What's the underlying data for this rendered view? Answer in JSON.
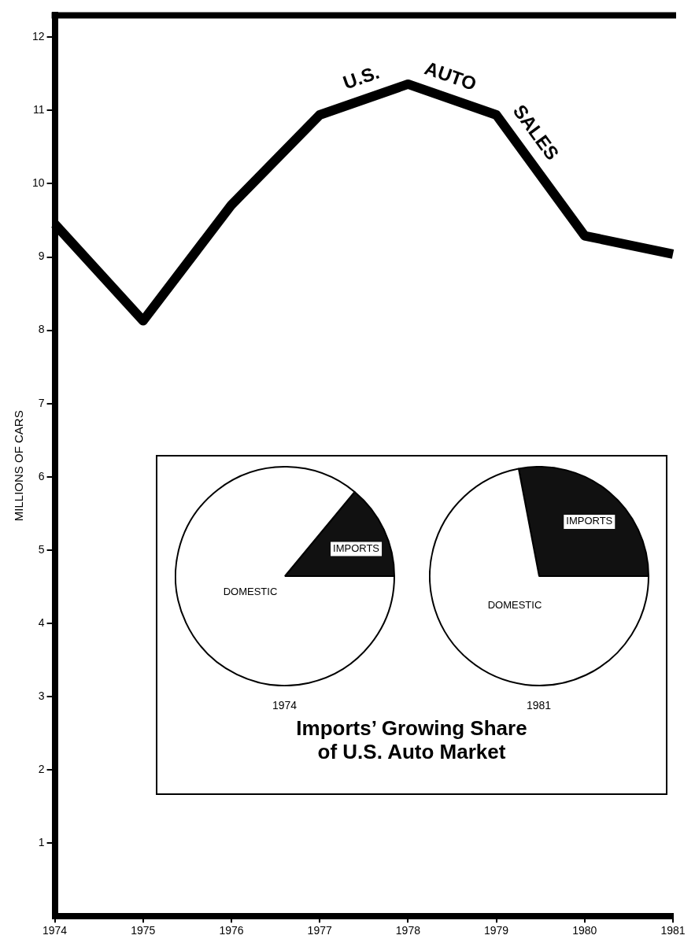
{
  "chart_data": [
    {
      "type": "line",
      "ylabel": "MILLIONS OF CARS",
      "categories": [
        "1974",
        "1975",
        "1976",
        "1977",
        "1978",
        "1979",
        "1980",
        "1981"
      ],
      "series": [
        {
          "name": "U.S. AUTO SALES",
          "color": "#000000",
          "values": [
            9.45,
            8.13,
            9.71,
            10.94,
            11.36,
            10.94,
            9.29,
            9.04
          ]
        }
      ],
      "ylim": [
        0,
        12.3
      ],
      "yticks": [
        1,
        2,
        3,
        4,
        5,
        6,
        7,
        8,
        9,
        10,
        11,
        12
      ],
      "grid": false,
      "legend": false,
      "marker": "none",
      "line_style": "solid"
    },
    {
      "type": "pie",
      "title": "1974",
      "subtitle": "Imports’ Growing Share of U.S. Auto Market",
      "categories": [
        "IMPORTS",
        "DOMESTIC"
      ],
      "values": [
        14,
        86
      ],
      "colors": [
        "#111111",
        "#ffffff"
      ],
      "legend": false
    },
    {
      "type": "pie",
      "title": "1981",
      "categories": [
        "IMPORTS",
        "DOMESTIC"
      ],
      "values": [
        28,
        72
      ],
      "colors": [
        "#111111",
        "#ffffff"
      ],
      "legend": false
    }
  ]
}
